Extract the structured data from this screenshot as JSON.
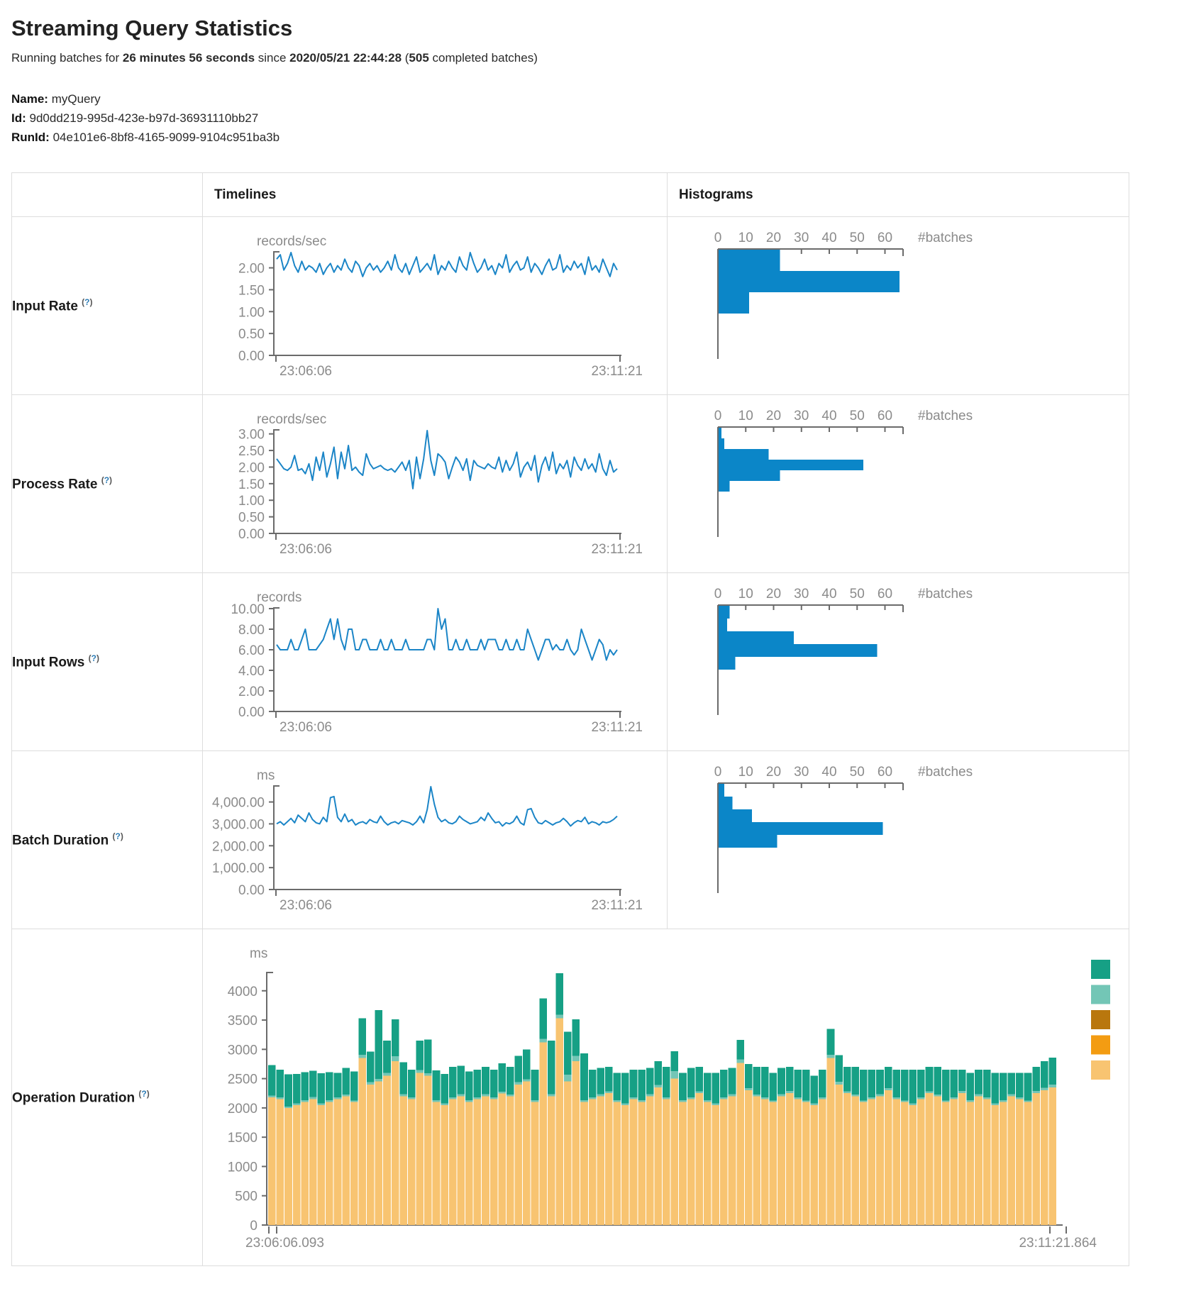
{
  "page": {
    "title": "Streaming Query Statistics",
    "subtitle": {
      "prefix": "Running batches for ",
      "duration": "26 minutes 56 seconds",
      "mid": " since ",
      "start_time": "2020/05/21 22:44:28",
      "open_paren": " (",
      "batches": "505",
      "suffix": " completed batches)"
    },
    "name_label": "Name:",
    "name_value": "myQuery",
    "id_label": "Id:",
    "id_value": "9d0dd219-995d-423e-b97d-36931110bb27",
    "runid_label": "RunId:",
    "runid_value": "04e101e6-8bf8-4165-9099-9104c951ba3b"
  },
  "table": {
    "header": {
      "timelines": "Timelines",
      "histograms": "Histograms"
    },
    "help_open": "(",
    "help_q": "?",
    "help_close": ")",
    "rows": [
      {
        "label": "Input Rate"
      },
      {
        "label": "Process Rate"
      },
      {
        "label": "Input Rows"
      },
      {
        "label": "Batch Duration"
      },
      {
        "label": "Operation Duration"
      }
    ]
  },
  "chart_data": [
    {
      "id": "input-rate-timeline",
      "type": "line",
      "unit": "records/sec",
      "color": "#1b85c7",
      "x_start": "23:06:06",
      "x_end": "23:11:21",
      "y_ticks": [
        0,
        0.5,
        1,
        1.5,
        2
      ],
      "y_tick_labels": [
        "0.00",
        "0.50",
        "1.00",
        "1.50",
        "2.00"
      ],
      "values": [
        2.2,
        2.3,
        1.95,
        2.1,
        2.35,
        2.05,
        1.9,
        2.15,
        1.95,
        2.05,
        2.0,
        1.9,
        2.1,
        1.85,
        2.0,
        2.1,
        1.9,
        2.05,
        1.95,
        2.2,
        2.0,
        1.9,
        2.15,
        2.05,
        1.8,
        2.0,
        2.1,
        1.95,
        2.05,
        1.9,
        2.0,
        2.15,
        1.95,
        2.3,
        2.0,
        1.9,
        2.1,
        1.85,
        2.05,
        2.25,
        1.9,
        2.0,
        2.1,
        1.95,
        2.3,
        1.85,
        2.05,
        1.95,
        2.15,
        2.0,
        1.9,
        2.25,
        2.05,
        1.95,
        2.35,
        2.1,
        1.9,
        2.0,
        2.2,
        1.95,
        2.05,
        1.85,
        2.1,
        2.0,
        2.3,
        1.9,
        2.05,
        2.15,
        1.95,
        2.0,
        2.25,
        1.9,
        2.1,
        2.0,
        1.85,
        2.05,
        2.2,
        1.95,
        2.0,
        2.3,
        1.9,
        2.05,
        1.95,
        2.15,
        2.0,
        2.1,
        1.85,
        2.25,
        1.95,
        2.05,
        1.9,
        2.2,
        2.0,
        1.8,
        2.1,
        1.95
      ]
    },
    {
      "id": "input-rate-histogram",
      "type": "bar",
      "orientation": "horizontal",
      "color": "#0b86c8",
      "x_label": "#batches",
      "x_ticks": [
        0,
        10,
        20,
        30,
        40,
        50,
        60
      ],
      "values": [
        22,
        65,
        11
      ]
    },
    {
      "id": "process-rate-timeline",
      "type": "line",
      "unit": "records/sec",
      "color": "#1b85c7",
      "x_start": "23:06:06",
      "x_end": "23:11:21",
      "y_ticks": [
        0,
        0.5,
        1,
        1.5,
        2,
        2.5,
        3
      ],
      "y_tick_labels": [
        "0.00",
        "0.50",
        "1.00",
        "1.50",
        "2.00",
        "2.50",
        "3.00"
      ],
      "values": [
        2.25,
        2.1,
        1.95,
        1.9,
        2.0,
        2.35,
        1.9,
        1.95,
        1.8,
        2.1,
        1.6,
        2.3,
        1.9,
        2.45,
        1.7,
        2.1,
        2.6,
        1.65,
        2.45,
        1.95,
        2.65,
        1.9,
        2.0,
        1.85,
        1.75,
        2.4,
        2.1,
        1.95,
        2.0,
        2.05,
        1.95,
        1.9,
        1.95,
        1.85,
        2.0,
        2.15,
        1.9,
        2.2,
        1.35,
        2.3,
        1.65,
        2.25,
        3.1,
        2.2,
        1.75,
        2.4,
        2.3,
        2.15,
        1.65,
        2.0,
        2.3,
        2.15,
        1.9,
        2.25,
        1.6,
        2.2,
        2.05,
        2.0,
        1.95,
        2.1,
        2.0,
        1.95,
        2.3,
        1.85,
        2.2,
        1.9,
        2.1,
        2.45,
        1.7,
        2.0,
        2.15,
        1.9,
        2.35,
        1.55,
        2.05,
        2.3,
        1.9,
        2.45,
        1.8,
        2.1,
        1.95,
        2.2,
        1.7,
        2.3,
        2.05,
        1.9,
        2.25,
        1.95,
        2.1,
        1.85,
        2.4,
        1.95,
        1.75,
        2.2,
        1.85,
        1.95
      ]
    },
    {
      "id": "process-rate-histogram",
      "type": "bar",
      "orientation": "horizontal",
      "color": "#0b86c8",
      "x_label": "#batches",
      "x_ticks": [
        0,
        10,
        20,
        30,
        40,
        50,
        60
      ],
      "values": [
        1,
        2,
        18,
        52,
        22,
        4
      ]
    },
    {
      "id": "input-rows-timeline",
      "type": "line",
      "unit": "records",
      "color": "#1b85c7",
      "x_start": "23:06:06",
      "x_end": "23:11:21",
      "y_ticks": [
        0,
        2,
        4,
        6,
        8,
        10
      ],
      "y_tick_labels": [
        "0.00",
        "2.00",
        "4.00",
        "6.00",
        "8.00",
        "10.00"
      ],
      "values": [
        6.5,
        6,
        6,
        6,
        7,
        6,
        6,
        7,
        8,
        6,
        6,
        6,
        6.5,
        7,
        8,
        9,
        7,
        9,
        7,
        6,
        8,
        8,
        6,
        6,
        7,
        7,
        6,
        6,
        6,
        7,
        6,
        6,
        7,
        6,
        6,
        6,
        7,
        6,
        6,
        6,
        6,
        6,
        7,
        7,
        6,
        10,
        8,
        9,
        6,
        6,
        7,
        6,
        6,
        7,
        6,
        6,
        6,
        7,
        6,
        7,
        7,
        7,
        6,
        6,
        7,
        6,
        6,
        7,
        6,
        6,
        8,
        7,
        6,
        5,
        6,
        7,
        7,
        6,
        6.5,
        6,
        6,
        7,
        6,
        5.5,
        6,
        8,
        7,
        6,
        5,
        6,
        7,
        6.5,
        5,
        6,
        5.5,
        6
      ]
    },
    {
      "id": "input-rows-histogram",
      "type": "bar",
      "orientation": "horizontal",
      "color": "#0b86c8",
      "x_label": "#batches",
      "x_ticks": [
        0,
        10,
        20,
        30,
        40,
        50,
        60
      ],
      "values": [
        4,
        3,
        27,
        57,
        6
      ]
    },
    {
      "id": "batch-duration-timeline",
      "type": "line",
      "unit": "ms",
      "color": "#1b85c7",
      "x_start": "23:06:06",
      "x_end": "23:11:21",
      "y_ticks": [
        0,
        1000,
        2000,
        3000,
        4000
      ],
      "y_tick_labels": [
        "0.00",
        "1,000.00",
        "2,000.00",
        "3,000.00",
        "4,000.00"
      ],
      "values": [
        3000,
        3100,
        2950,
        3100,
        3250,
        3050,
        3400,
        3250,
        3100,
        3500,
        3200,
        3050,
        3000,
        3300,
        3100,
        4200,
        4250,
        3300,
        3100,
        3450,
        3100,
        3200,
        2950,
        3050,
        3100,
        3000,
        3200,
        3100,
        3050,
        3350,
        3100,
        2950,
        3050,
        3100,
        3000,
        3150,
        3100,
        3050,
        2950,
        3100,
        3350,
        3050,
        3650,
        4700,
        3900,
        3300,
        3100,
        3200,
        3050,
        3000,
        3100,
        3350,
        3200,
        3100,
        3000,
        3050,
        3100,
        3300,
        3150,
        3500,
        3250,
        3050,
        3100,
        2900,
        3050,
        3000,
        3100,
        3350,
        3050,
        2950,
        3650,
        3700,
        3300,
        3050,
        3000,
        3150,
        3050,
        2950,
        3050,
        3100,
        3250,
        3100,
        2900,
        3050,
        3150,
        3100,
        3300,
        3000,
        3100,
        3050,
        2950,
        3100,
        3050,
        3100,
        3200,
        3350
      ]
    },
    {
      "id": "batch-duration-histogram",
      "type": "bar",
      "orientation": "horizontal",
      "color": "#0b86c8",
      "x_label": "#batches",
      "x_ticks": [
        0,
        10,
        20,
        30,
        40,
        50,
        60
      ],
      "values": [
        2,
        5,
        12,
        59,
        21
      ]
    },
    {
      "id": "operation-duration",
      "type": "stacked-bar",
      "unit": "ms",
      "x_start": "23:06:06.093",
      "x_end": "23:11:21.864",
      "y_ticks": [
        0,
        500,
        1000,
        1500,
        2000,
        2500,
        3000,
        3500,
        4000
      ],
      "y_tick_labels": [
        "0",
        "500",
        "1000",
        "1500",
        "2000",
        "2500",
        "3000",
        "3500",
        "4000"
      ],
      "legend_colors": [
        "#16A085",
        "#73C6B6",
        "#B9770E",
        "#F39C12",
        "#F8C471"
      ],
      "series": [
        {
          "name": "tan-segment",
          "color": "#F8C471",
          "values": [
            2180,
            2150,
            2000,
            2050,
            2100,
            2150,
            2050,
            2100,
            2150,
            2200,
            2100,
            2850,
            2400,
            2450,
            2550,
            2800,
            2200,
            2150,
            2600,
            2550,
            2100,
            2050,
            2150,
            2200,
            2100,
            2150,
            2200,
            2150,
            2250,
            2200,
            2400,
            2450,
            2100,
            3120,
            2200,
            3530,
            2450,
            2800,
            2100,
            2150,
            2200,
            2250,
            2100,
            2050,
            2150,
            2100,
            2200,
            2350,
            2150,
            2500,
            2100,
            2150,
            2250,
            2100,
            2050,
            2150,
            2200,
            2770,
            2300,
            2200,
            2150,
            2100,
            2200,
            2250,
            2150,
            2100,
            2050,
            2150,
            2850,
            2400,
            2250,
            2200,
            2100,
            2150,
            2200,
            2300,
            2150,
            2100,
            2050,
            2150,
            2250,
            2200,
            2100,
            2150,
            2250,
            2100,
            2200,
            2150,
            2050,
            2100,
            2200,
            2150,
            2100,
            2250,
            2300,
            2350
          ]
        },
        {
          "name": "light-teal-segment",
          "color": "#73C6B6",
          "values": [
            30,
            30,
            25,
            30,
            30,
            35,
            25,
            30,
            30,
            30,
            25,
            60,
            40,
            45,
            50,
            80,
            35,
            30,
            45,
            40,
            30,
            25,
            30,
            35,
            30,
            30,
            35,
            30,
            30,
            30,
            40,
            40,
            30,
            60,
            35,
            60,
            120,
            90,
            30,
            30,
            35,
            35,
            30,
            25,
            30,
            30,
            35,
            40,
            30,
            130,
            30,
            30,
            35,
            30,
            25,
            30,
            35,
            60,
            40,
            30,
            30,
            25,
            35,
            40,
            30,
            25,
            25,
            30,
            60,
            45,
            35,
            30,
            25,
            30,
            35,
            40,
            30,
            25,
            25,
            30,
            35,
            30,
            25,
            30,
            40,
            30,
            35,
            30,
            25,
            30,
            35,
            30,
            25,
            40,
            45,
            50
          ]
        },
        {
          "name": "teal-segment",
          "color": "#16A085",
          "values": [
            520,
            470,
            550,
            500,
            480,
            450,
            520,
            480,
            420,
            450,
            500,
            620,
            520,
            1175,
            550,
            630,
            545,
            470,
            505,
            580,
            510,
            505,
            520,
            485,
            490,
            470,
            465,
            470,
            480,
            470,
            450,
            510,
            520,
            690,
            915,
            710,
            730,
            620,
            800,
            470,
            445,
            415,
            470,
            525,
            470,
            520,
            445,
            410,
            520,
            340,
            470,
            505,
            415,
            470,
            525,
            470,
            445,
            333,
            410,
            470,
            520,
            475,
            445,
            410,
            470,
            525,
            475,
            470,
            440,
            455,
            415,
            470,
            525,
            470,
            415,
            360,
            470,
            525,
            575,
            470,
            415,
            470,
            525,
            470,
            360,
            470,
            415,
            470,
            525,
            470,
            365,
            420,
            475,
            410,
            455,
            460
          ]
        }
      ]
    }
  ]
}
